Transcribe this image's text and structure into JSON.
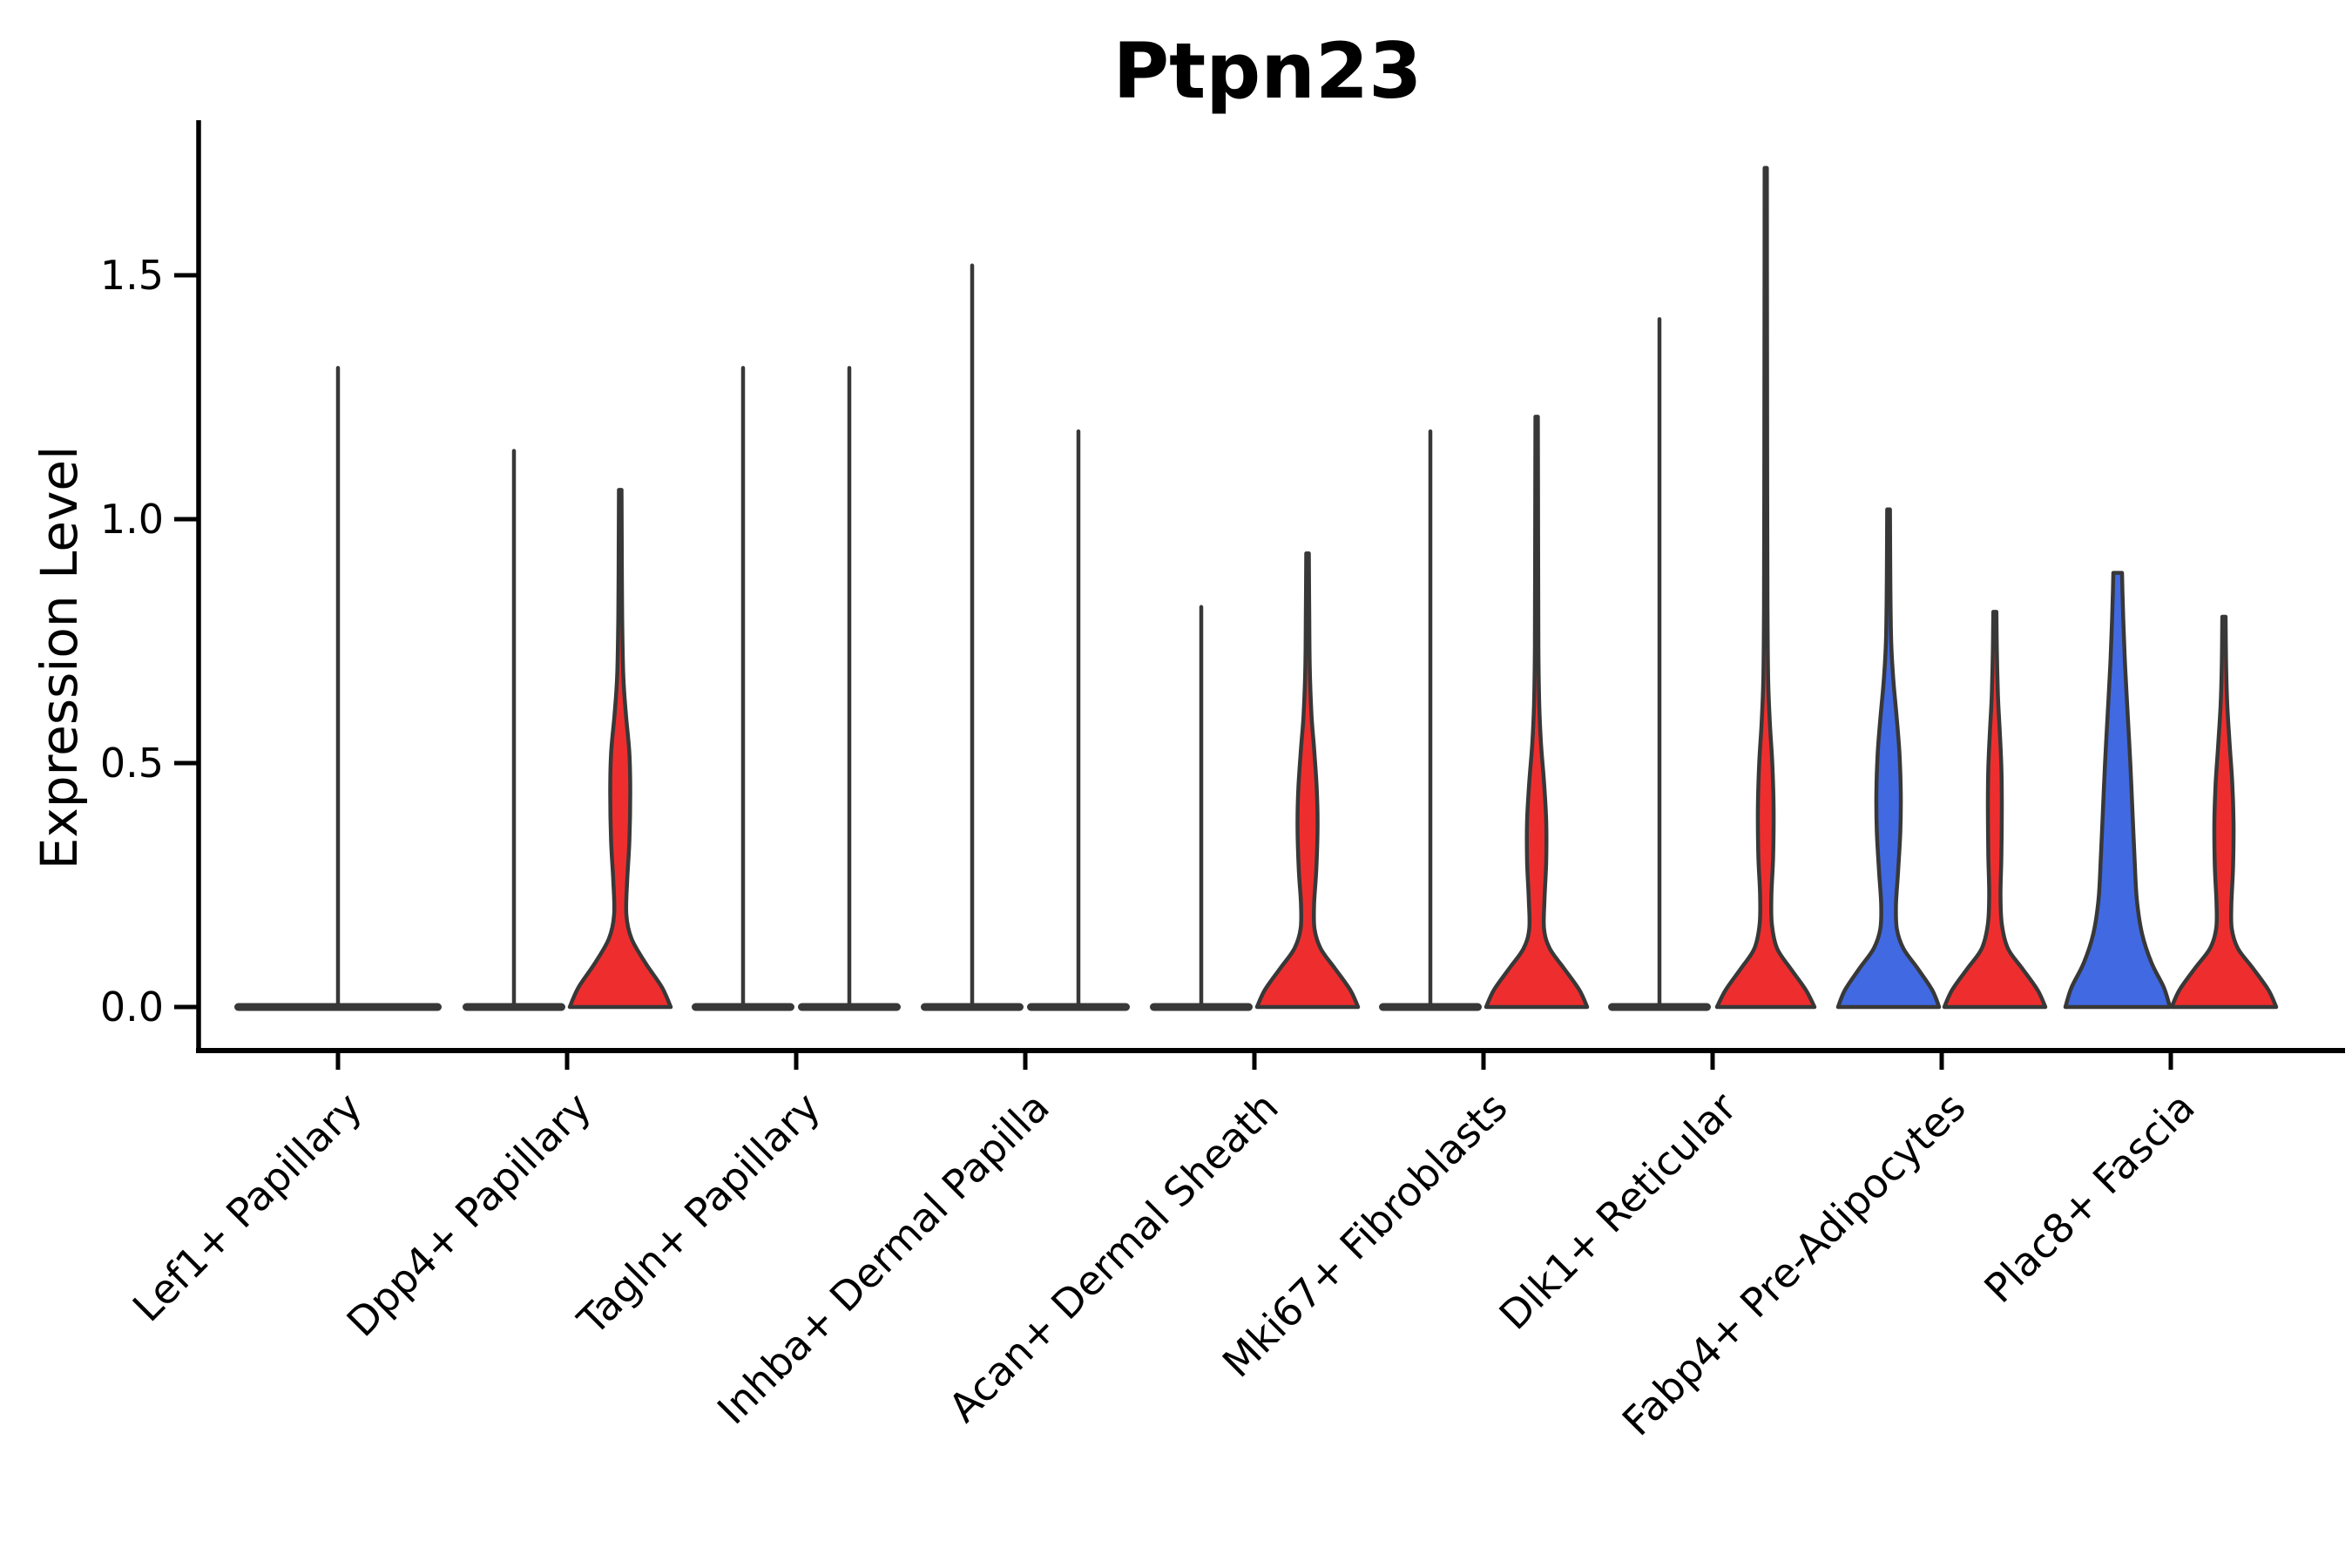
{
  "title": "Ptpn23",
  "axes": {
    "y_label": "Expression Level",
    "y_tick_labels": [
      "0.0",
      "0.5",
      "1.0",
      "1.5"
    ],
    "y_tick_values": [
      0.0,
      0.5,
      1.0,
      1.5
    ]
  },
  "colors": {
    "red_fill": "#ee2e2e",
    "blue_fill": "#4169e1",
    "violin_outline": "#383838",
    "axis": "#000000",
    "background": "#ffffff"
  },
  "chart_data": {
    "type": "violin",
    "title": "Ptpn23",
    "xlabel": "",
    "ylabel": "Expression Level",
    "ylim": [
      -0.09,
      1.82
    ],
    "y_ticks": [
      0.0,
      0.5,
      1.0,
      1.5
    ],
    "grid": false,
    "legend": "none",
    "categories": [
      "Lef1+ Papillary",
      "Dpp4+ Papillary",
      "Tagln+ Papillary",
      "Inhba+ Dermal Papilla",
      "Acan+ Dermal Sheath",
      "Mki67+ Fibroblasts",
      "Dlk1+ Reticular",
      "Fabp4+ Pre-Adipocytes",
      "Plac8+ Fascia"
    ],
    "violins": [
      {
        "category": "Lef1+ Papillary",
        "position": "center",
        "fill": "none",
        "flat": true,
        "max_expression": 1.31
      },
      {
        "category": "Dpp4+ Papillary",
        "position": "left",
        "fill": "none",
        "flat": true,
        "max_expression": 1.14
      },
      {
        "category": "Dpp4+ Papillary",
        "position": "right",
        "fill": "red",
        "flat": false,
        "max_expression": 1.06,
        "profile": [
          [
            0,
            58
          ],
          [
            0.04,
            48
          ],
          [
            0.09,
            29
          ],
          [
            0.14,
            13
          ],
          [
            0.19,
            7
          ],
          [
            0.26,
            8
          ],
          [
            0.34,
            10.5
          ],
          [
            0.44,
            11.5
          ],
          [
            0.52,
            10.5
          ],
          [
            0.6,
            6.5
          ],
          [
            0.68,
            3.5
          ],
          [
            0.8,
            2.2
          ],
          [
            0.93,
            1.8
          ],
          [
            1.06,
            1.5
          ]
        ]
      },
      {
        "category": "Tagln+ Papillary",
        "position": "left",
        "fill": "none",
        "flat": true,
        "max_expression": 1.31
      },
      {
        "category": "Tagln+ Papillary",
        "position": "right",
        "fill": "none",
        "flat": true,
        "max_expression": 1.31
      },
      {
        "category": "Inhba+ Dermal Papilla",
        "position": "left",
        "fill": "none",
        "flat": true,
        "max_expression": 1.52
      },
      {
        "category": "Inhba+ Dermal Papilla",
        "position": "right",
        "fill": "none",
        "flat": true,
        "max_expression": 1.18
      },
      {
        "category": "Acan+ Dermal Sheath",
        "position": "left",
        "fill": "none",
        "flat": true,
        "max_expression": 0.82
      },
      {
        "category": "Acan+ Dermal Sheath",
        "position": "right",
        "fill": "red",
        "flat": false,
        "max_expression": 0.93,
        "profile": [
          [
            0,
            58
          ],
          [
            0.035,
            49
          ],
          [
            0.08,
            31
          ],
          [
            0.12,
            15
          ],
          [
            0.16,
            8
          ],
          [
            0.21,
            7.5
          ],
          [
            0.28,
            10
          ],
          [
            0.37,
            11.5
          ],
          [
            0.45,
            10.5
          ],
          [
            0.53,
            7.5
          ],
          [
            0.6,
            4.5
          ],
          [
            0.7,
            2.5
          ],
          [
            0.82,
            1.9
          ],
          [
            0.93,
            1.5
          ]
        ]
      },
      {
        "category": "Mki67+ Fibroblasts",
        "position": "left",
        "fill": "none",
        "flat": true,
        "max_expression": 1.18
      },
      {
        "category": "Mki67+ Fibroblasts",
        "position": "right",
        "fill": "red",
        "flat": false,
        "max_expression": 1.21,
        "profile": [
          [
            0,
            58
          ],
          [
            0.035,
            49
          ],
          [
            0.08,
            31
          ],
          [
            0.12,
            15
          ],
          [
            0.16,
            8.5
          ],
          [
            0.22,
            9
          ],
          [
            0.3,
            11
          ],
          [
            0.38,
            11
          ],
          [
            0.46,
            8.5
          ],
          [
            0.54,
            5
          ],
          [
            0.62,
            3
          ],
          [
            0.74,
            2
          ],
          [
            0.95,
            1.7
          ],
          [
            1.21,
            1.4
          ]
        ]
      },
      {
        "category": "Dlk1+ Reticular",
        "position": "left",
        "fill": "none",
        "flat": true,
        "max_expression": 1.41
      },
      {
        "category": "Dlk1+ Reticular",
        "position": "right",
        "fill": "red",
        "flat": false,
        "max_expression": 1.72,
        "profile": [
          [
            0,
            56
          ],
          [
            0.035,
            46
          ],
          [
            0.08,
            28
          ],
          [
            0.12,
            13
          ],
          [
            0.17,
            7
          ],
          [
            0.23,
            6.5
          ],
          [
            0.31,
            8.5
          ],
          [
            0.41,
            9
          ],
          [
            0.5,
            7.5
          ],
          [
            0.58,
            4.8
          ],
          [
            0.67,
            2.8
          ],
          [
            0.82,
            2
          ],
          [
            1.05,
            1.7
          ],
          [
            1.35,
            1.5
          ],
          [
            1.72,
            1.3
          ]
        ]
      },
      {
        "category": "Fabp4+ Pre-Adipocytes",
        "position": "left",
        "fill": "blue",
        "flat": false,
        "max_expression": 1.02,
        "profile": [
          [
            0,
            58
          ],
          [
            0.035,
            50
          ],
          [
            0.08,
            33
          ],
          [
            0.12,
            17
          ],
          [
            0.16,
            9.5
          ],
          [
            0.21,
            8.5
          ],
          [
            0.28,
            11
          ],
          [
            0.36,
            13.5
          ],
          [
            0.44,
            14
          ],
          [
            0.52,
            12.5
          ],
          [
            0.6,
            9
          ],
          [
            0.67,
            5.5
          ],
          [
            0.75,
            3
          ],
          [
            0.88,
            2
          ],
          [
            1.02,
            1.6
          ]
        ]
      },
      {
        "category": "Fabp4+ Pre-Adipocytes",
        "position": "right",
        "fill": "red",
        "flat": false,
        "max_expression": 0.81,
        "profile": [
          [
            0,
            58
          ],
          [
            0.035,
            49
          ],
          [
            0.08,
            31
          ],
          [
            0.12,
            15
          ],
          [
            0.17,
            8
          ],
          [
            0.23,
            6.5
          ],
          [
            0.31,
            7.5
          ],
          [
            0.41,
            8
          ],
          [
            0.49,
            7.5
          ],
          [
            0.57,
            5.5
          ],
          [
            0.64,
            3.5
          ],
          [
            0.73,
            2.3
          ],
          [
            0.81,
            1.8
          ]
        ]
      },
      {
        "category": "Plac8+ Fascia",
        "position": "left",
        "fill": "blue",
        "flat": false,
        "max_expression": 0.89,
        "profile": [
          [
            0,
            60
          ],
          [
            0.04,
            53
          ],
          [
            0.09,
            39
          ],
          [
            0.15,
            28
          ],
          [
            0.22,
            22
          ],
          [
            0.3,
            19.5
          ],
          [
            0.4,
            17
          ],
          [
            0.5,
            14.5
          ],
          [
            0.6,
            11.5
          ],
          [
            0.7,
            8.5
          ],
          [
            0.79,
            6.5
          ],
          [
            0.85,
            5.5
          ],
          [
            0.89,
            5
          ]
        ]
      },
      {
        "category": "Plac8+ Fascia",
        "position": "right",
        "fill": "red",
        "flat": false,
        "max_expression": 0.8,
        "profile": [
          [
            0,
            60
          ],
          [
            0.035,
            51
          ],
          [
            0.08,
            33
          ],
          [
            0.12,
            16
          ],
          [
            0.16,
            9
          ],
          [
            0.21,
            8.5
          ],
          [
            0.29,
            10.5
          ],
          [
            0.38,
            11
          ],
          [
            0.46,
            9.5
          ],
          [
            0.54,
            6.5
          ],
          [
            0.62,
            3.8
          ],
          [
            0.71,
            2.4
          ],
          [
            0.8,
            1.9
          ]
        ]
      }
    ]
  }
}
